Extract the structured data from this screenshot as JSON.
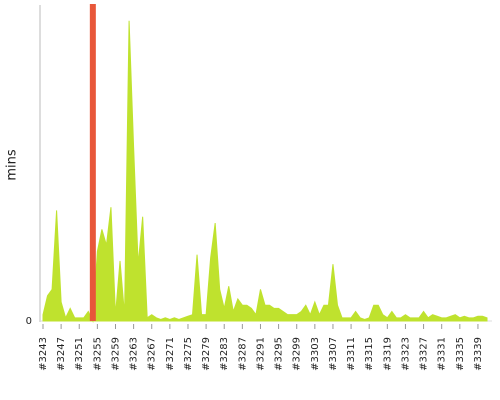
{
  "chart_data": {
    "type": "area",
    "y_label": "mins",
    "categories": [
      "#3243",
      null,
      null,
      null,
      "#3247",
      null,
      null,
      null,
      "#3251",
      null,
      null,
      null,
      "#3255",
      null,
      null,
      null,
      "#3259",
      null,
      null,
      null,
      "#3263",
      null,
      null,
      null,
      "#3267",
      null,
      null,
      null,
      "#3271",
      null,
      null,
      null,
      "#3275",
      null,
      null,
      null,
      "#3279",
      null,
      null,
      null,
      "#3283",
      null,
      null,
      null,
      "#3287",
      null,
      null,
      null,
      "#3291",
      null,
      null,
      null,
      "#3295",
      null,
      null,
      null,
      "#3299",
      null,
      null,
      null,
      "#3303",
      null,
      null,
      null,
      "#3307",
      null,
      null,
      null,
      "#3311",
      null,
      null,
      null,
      "#3315",
      null,
      null,
      null,
      "#3319",
      null,
      null,
      null,
      "#3323",
      null,
      null,
      null,
      "#3327",
      null,
      null,
      null,
      "#3331",
      null,
      null,
      null,
      "#3335",
      null,
      null,
      null,
      "#3339",
      null,
      null
    ],
    "values": [
      2,
      8,
      10,
      35,
      6,
      1,
      4,
      1,
      1,
      1,
      3,
      0,
      22,
      29,
      24,
      36,
      2,
      19,
      2,
      95,
      55,
      18,
      33,
      1,
      2,
      1,
      0.5,
      1,
      0.5,
      1,
      0.5,
      1,
      1.5,
      2,
      21,
      2,
      2,
      20,
      31,
      10,
      4,
      11,
      3,
      7,
      5,
      5,
      4,
      2,
      10,
      5,
      5,
      4,
      4,
      3,
      2,
      2,
      2,
      3,
      5,
      2,
      6,
      2,
      5,
      5,
      18,
      5,
      1,
      1,
      1,
      3,
      1,
      0.5,
      1,
      5,
      5,
      2,
      1,
      3,
      1,
      1,
      2,
      1,
      1,
      1,
      3,
      1,
      2,
      1.5,
      1,
      1,
      1.5,
      2,
      1,
      1.5,
      1,
      1,
      1.5,
      1.5,
      1
    ],
    "color": "#bfe22e",
    "highlight": 11,
    "highlight_color": "#e8573a",
    "ylim": [
      0,
      100
    ],
    "yticks": [
      0
    ]
  }
}
